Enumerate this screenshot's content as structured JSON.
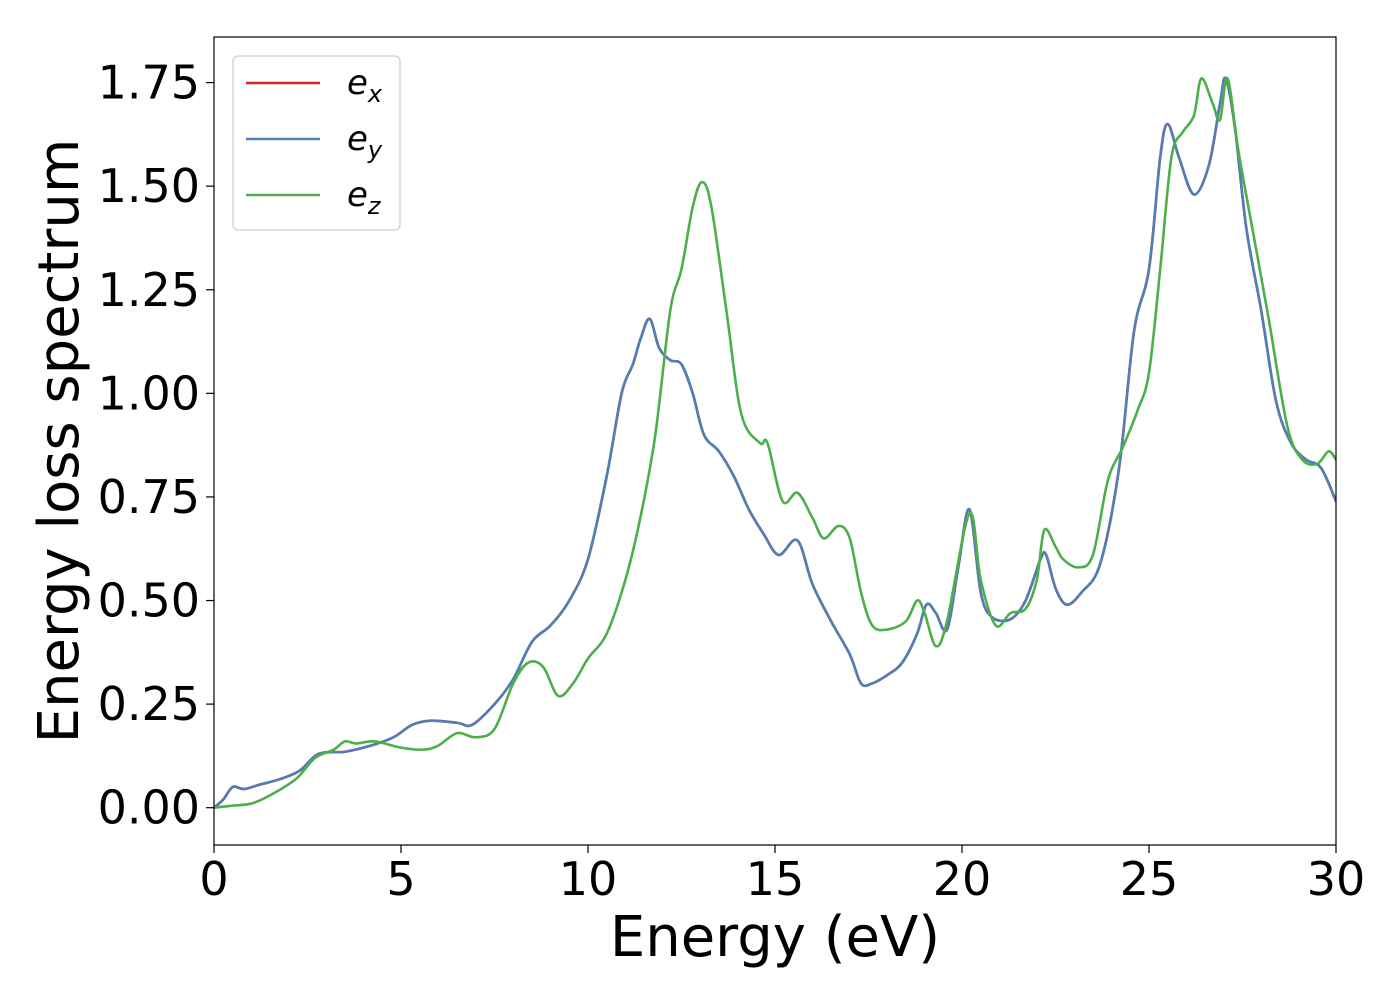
{
  "chart_data": {
    "type": "line",
    "xlabel": "Energy (eV)",
    "ylabel": "Energy loss spectrum",
    "xlim": [
      0,
      30
    ],
    "ylim": [
      -0.09,
      1.86
    ],
    "xticks": [
      "0",
      "5",
      "10",
      "15",
      "20",
      "25",
      "30"
    ],
    "yticks": [
      "0.00",
      "0.25",
      "0.50",
      "0.75",
      "1.00",
      "1.25",
      "1.50",
      "1.75"
    ],
    "grid": false,
    "legend_position": "top-left",
    "series": [
      {
        "name": "e",
        "subscript": "x",
        "color": "#d62728",
        "x": [
          0,
          0.25,
          0.5,
          0.8,
          1.2,
          1.8,
          2.3,
          2.8,
          3.5,
          4.2,
          4.8,
          5.3,
          5.8,
          6.5,
          6.9,
          7.5,
          8.0,
          8.5,
          9.0,
          9.5,
          10.0,
          10.5,
          10.9,
          11.2,
          11.4,
          11.65,
          11.9,
          12.2,
          12.5,
          12.8,
          13.1,
          13.5,
          13.9,
          14.3,
          14.7,
          15.1,
          15.6,
          16.0,
          16.5,
          17.0,
          17.3,
          17.6,
          18.0,
          18.4,
          18.8,
          19.05,
          19.3,
          19.6,
          19.9,
          20.2,
          20.5,
          20.8,
          21.3,
          21.7,
          22.1,
          22.25,
          22.5,
          22.8,
          23.2,
          23.7,
          24.2,
          24.6,
          25.0,
          25.3,
          25.5,
          25.8,
          26.2,
          26.6,
          26.9,
          27.05,
          27.3,
          27.6,
          28.0,
          28.4,
          28.8,
          29.2,
          29.6,
          30.0
        ],
        "y": [
          0.0,
          0.02,
          0.05,
          0.045,
          0.055,
          0.07,
          0.09,
          0.13,
          0.135,
          0.15,
          0.17,
          0.2,
          0.21,
          0.205,
          0.2,
          0.25,
          0.31,
          0.4,
          0.44,
          0.5,
          0.6,
          0.8,
          1.0,
          1.07,
          1.13,
          1.18,
          1.11,
          1.08,
          1.07,
          1.0,
          0.9,
          0.86,
          0.8,
          0.72,
          0.66,
          0.61,
          0.645,
          0.54,
          0.45,
          0.37,
          0.3,
          0.3,
          0.32,
          0.35,
          0.42,
          0.49,
          0.47,
          0.43,
          0.58,
          0.72,
          0.52,
          0.46,
          0.455,
          0.5,
          0.6,
          0.61,
          0.53,
          0.49,
          0.52,
          0.59,
          0.82,
          1.15,
          1.3,
          1.57,
          1.65,
          1.57,
          1.48,
          1.55,
          1.7,
          1.76,
          1.64,
          1.4,
          1.2,
          0.98,
          0.88,
          0.84,
          0.82,
          0.74
        ]
      },
      {
        "name": "e",
        "subscript": "y",
        "color": "#4f7fb7",
        "x": [
          0,
          0.25,
          0.5,
          0.8,
          1.2,
          1.8,
          2.3,
          2.8,
          3.5,
          4.2,
          4.8,
          5.3,
          5.8,
          6.5,
          6.9,
          7.5,
          8.0,
          8.5,
          9.0,
          9.5,
          10.0,
          10.5,
          10.9,
          11.2,
          11.4,
          11.65,
          11.9,
          12.2,
          12.5,
          12.8,
          13.1,
          13.5,
          13.9,
          14.3,
          14.7,
          15.1,
          15.6,
          16.0,
          16.5,
          17.0,
          17.3,
          17.6,
          18.0,
          18.4,
          18.8,
          19.05,
          19.3,
          19.6,
          19.9,
          20.2,
          20.5,
          20.8,
          21.3,
          21.7,
          22.1,
          22.25,
          22.5,
          22.8,
          23.2,
          23.7,
          24.2,
          24.6,
          25.0,
          25.3,
          25.5,
          25.8,
          26.2,
          26.6,
          26.9,
          27.05,
          27.3,
          27.6,
          28.0,
          28.4,
          28.8,
          29.2,
          29.6,
          30.0
        ],
        "y": [
          0.0,
          0.02,
          0.05,
          0.045,
          0.055,
          0.07,
          0.09,
          0.13,
          0.135,
          0.15,
          0.17,
          0.2,
          0.21,
          0.205,
          0.2,
          0.25,
          0.31,
          0.4,
          0.44,
          0.5,
          0.6,
          0.8,
          1.0,
          1.07,
          1.13,
          1.18,
          1.11,
          1.08,
          1.07,
          1.0,
          0.9,
          0.86,
          0.8,
          0.72,
          0.66,
          0.61,
          0.645,
          0.54,
          0.45,
          0.37,
          0.3,
          0.3,
          0.32,
          0.35,
          0.42,
          0.49,
          0.47,
          0.43,
          0.58,
          0.72,
          0.52,
          0.46,
          0.455,
          0.5,
          0.6,
          0.61,
          0.53,
          0.49,
          0.52,
          0.59,
          0.82,
          1.15,
          1.3,
          1.57,
          1.65,
          1.57,
          1.48,
          1.55,
          1.7,
          1.76,
          1.64,
          1.4,
          1.2,
          0.98,
          0.88,
          0.84,
          0.82,
          0.74
        ]
      },
      {
        "name": "e",
        "subscript": "z",
        "color": "#4daf4a",
        "x": [
          0,
          0.5,
          1.0,
          1.5,
          2.2,
          2.7,
          3.2,
          3.5,
          3.8,
          4.3,
          5.0,
          5.6,
          6.0,
          6.5,
          7.0,
          7.5,
          8.0,
          8.4,
          8.8,
          9.2,
          9.6,
          10.0,
          10.5,
          11.0,
          11.4,
          11.8,
          12.2,
          12.5,
          12.8,
          13.05,
          13.3,
          13.7,
          14.1,
          14.6,
          14.8,
          15.2,
          15.6,
          16.0,
          16.3,
          16.7,
          17.0,
          17.3,
          17.6,
          18.0,
          18.5,
          18.8,
          19.0,
          19.3,
          19.6,
          20.2,
          20.5,
          20.9,
          21.3,
          21.7,
          22.0,
          22.2,
          22.5,
          22.7,
          23.1,
          23.5,
          23.9,
          24.3,
          24.7,
          25.0,
          25.3,
          25.6,
          25.9,
          26.2,
          26.4,
          26.7,
          26.9,
          27.1,
          27.4,
          27.8,
          28.2,
          28.7,
          29.1,
          29.5,
          29.8,
          30.0
        ],
        "y": [
          0.0,
          0.005,
          0.01,
          0.03,
          0.07,
          0.12,
          0.14,
          0.16,
          0.155,
          0.16,
          0.145,
          0.14,
          0.15,
          0.18,
          0.17,
          0.19,
          0.3,
          0.35,
          0.34,
          0.27,
          0.3,
          0.36,
          0.42,
          0.55,
          0.7,
          0.9,
          1.2,
          1.3,
          1.45,
          1.51,
          1.45,
          1.2,
          0.95,
          0.88,
          0.88,
          0.74,
          0.76,
          0.7,
          0.65,
          0.68,
          0.65,
          0.52,
          0.44,
          0.43,
          0.45,
          0.5,
          0.47,
          0.39,
          0.45,
          0.71,
          0.55,
          0.44,
          0.47,
          0.48,
          0.55,
          0.67,
          0.63,
          0.6,
          0.58,
          0.61,
          0.79,
          0.87,
          0.96,
          1.05,
          1.3,
          1.57,
          1.63,
          1.67,
          1.76,
          1.7,
          1.66,
          1.76,
          1.58,
          1.38,
          1.18,
          0.92,
          0.84,
          0.83,
          0.86,
          0.84
        ]
      }
    ]
  }
}
